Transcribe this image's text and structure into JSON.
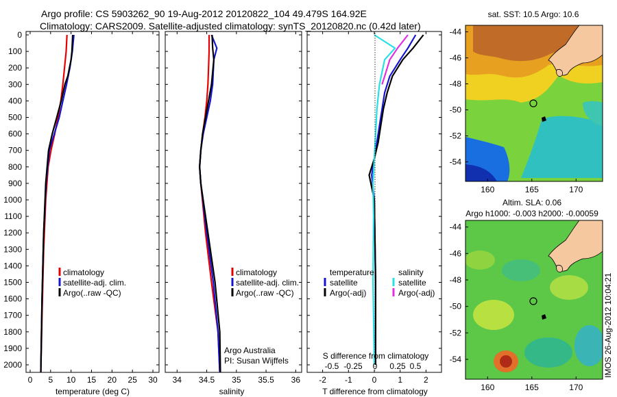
{
  "header": {
    "line1": "Argo profile: CS 5903262_90 19-Aug-2012 20120822_104 49.479S 164.92E",
    "line2": "Climatology: CARS2009. Satellite-adjusted climatology: synTS_20120820.nc (0.42d later)"
  },
  "credits": {
    "org": "Argo Australia",
    "pi": "PI: Susan Wijffels"
  },
  "timestamp": "IMOS 26-Aug-2012 10:04:21",
  "colors": {
    "climatology": "#e60000",
    "satellite": "#1515d0",
    "argo": "#000000",
    "sal_satellite": "#27e0e6",
    "sal_argo": "#e030e0",
    "land": "#f5c8a0",
    "marker": "#000000"
  },
  "chart_data": [
    {
      "type": "line",
      "id": "temperature",
      "xlabel": "temperature (deg C)",
      "ylabel": "",
      "xlim": [
        -1,
        31.5
      ],
      "ylim": [
        2080,
        0
      ],
      "invert_y": true,
      "xticks": [
        0,
        5,
        10,
        15,
        20,
        25,
        30
      ],
      "yticks": [
        0,
        100,
        200,
        300,
        400,
        500,
        600,
        700,
        800,
        900,
        1000,
        1100,
        1200,
        1300,
        1400,
        1500,
        1600,
        1700,
        1800,
        1900,
        2000
      ],
      "legend": {
        "position": "middle-right",
        "entries": [
          "climatology",
          "satellite-adj. clim.",
          "Argo(..raw -QC)"
        ]
      },
      "series": [
        {
          "name": "climatology",
          "color": "red",
          "x": [
            9.0,
            8.8,
            8.4,
            8.0,
            7.5,
            6.8,
            6.0,
            5.1,
            4.4,
            3.8,
            3.3,
            2.9,
            2.6
          ],
          "y": [
            0,
            100,
            200,
            300,
            400,
            500,
            600,
            700,
            800,
            1000,
            1300,
            1700,
            2050
          ]
        },
        {
          "name": "satellite-adj. clim.",
          "color": "blue",
          "x": [
            10.7,
            10.5,
            10.3,
            9.7,
            8.9,
            8.0,
            7.1,
            5.9,
            4.7,
            3.9,
            3.3,
            2.9,
            2.6
          ],
          "y": [
            0,
            50,
            100,
            200,
            300,
            400,
            500,
            600,
            700,
            900,
            1200,
            1600,
            2050
          ]
        },
        {
          "name": "Argo(..raw -QC)",
          "color": "black",
          "x": [
            10.4,
            10.3,
            10.2,
            10.0,
            9.6,
            9.2,
            8.5,
            7.6,
            6.5,
            5.4,
            4.5,
            3.8,
            3.3,
            2.9,
            2.6
          ],
          "y": [
            0,
            50,
            100,
            150,
            200,
            250,
            300,
            400,
            500,
            600,
            700,
            900,
            1200,
            1600,
            2050
          ]
        }
      ]
    },
    {
      "type": "line",
      "id": "salinity",
      "xlabel": "salinity",
      "ylabel": "",
      "xlim": [
        33.8,
        36.1
      ],
      "ylim": [
        2080,
        0
      ],
      "invert_y": true,
      "xticks": [
        34,
        34.5,
        35,
        35.5,
        36
      ],
      "legend": {
        "position": "middle-right",
        "entries": [
          "climatology",
          "satellite-adj. clim.",
          "Argo(..raw -QC)"
        ]
      },
      "series": [
        {
          "name": "climatology",
          "color": "red",
          "x": [
            34.54,
            34.54,
            34.53,
            34.52,
            34.5,
            34.47,
            34.43,
            34.4,
            34.38,
            34.4,
            34.48,
            34.58,
            34.69,
            34.72
          ],
          "y": [
            0,
            100,
            200,
            300,
            400,
            500,
            600,
            700,
            800,
            900,
            1200,
            1500,
            1800,
            2050
          ]
        },
        {
          "name": "satellite-adj. clim.",
          "color": "blue",
          "x": [
            34.58,
            34.67,
            34.62,
            34.6,
            34.56,
            34.5,
            34.44,
            34.4,
            34.38,
            34.4,
            34.5,
            34.61,
            34.69,
            34.72
          ],
          "y": [
            0,
            80,
            150,
            300,
            400,
            500,
            600,
            700,
            800,
            900,
            1200,
            1500,
            1800,
            2050
          ]
        },
        {
          "name": "Argo(..raw -QC)",
          "color": "black",
          "x": [
            34.59,
            34.6,
            34.62,
            34.58,
            34.53,
            34.48,
            34.43,
            34.4,
            34.38,
            34.4,
            34.52,
            34.64,
            34.72,
            34.73
          ],
          "y": [
            0,
            80,
            150,
            300,
            400,
            500,
            600,
            700,
            800,
            900,
            1200,
            1500,
            1800,
            2050
          ]
        }
      ]
    },
    {
      "type": "line",
      "id": "difference",
      "xlabel": "T difference from climatology",
      "xlabel_top": "S difference from climatology",
      "xlim": [
        -2.6,
        2.6
      ],
      "ylim": [
        2080,
        0
      ],
      "invert_y": true,
      "xticks": [
        -2,
        -1,
        0,
        1,
        2
      ],
      "xticks_salinity": [
        -0.5,
        -0.25,
        0,
        0.25,
        0.5
      ],
      "legend": {
        "position": "middle",
        "groups": [
          {
            "title": "temperature",
            "entries": [
              "satellite",
              "Argo(-adj)"
            ]
          },
          {
            "title": "salinity",
            "entries": [
              "satellite",
              "Argo(-adj)"
            ]
          }
        ]
      },
      "series": [
        {
          "name": "temperature satellite",
          "color": "blue",
          "x": [
            1.6,
            1.3,
            1.0,
            0.6,
            0.4,
            0.3,
            0.2,
            0.1,
            0.0,
            -0.1,
            0.0,
            0.05,
            0.05
          ],
          "y": [
            0,
            80,
            150,
            250,
            350,
            450,
            550,
            650,
            750,
            850,
            1000,
            1500,
            2000
          ]
        },
        {
          "name": "temperature Argo(-adj)",
          "color": "black",
          "x": [
            1.9,
            1.5,
            1.1,
            0.7,
            0.5,
            0.35,
            0.25,
            0.15,
            0.0,
            -0.2,
            0.0,
            0.05,
            0.05
          ],
          "y": [
            0,
            80,
            150,
            250,
            350,
            450,
            550,
            650,
            750,
            850,
            1000,
            1500,
            2000
          ]
        },
        {
          "name": "salinity satellite",
          "color": "cyan",
          "x": [
            0.0,
            0.8,
            0.4,
            0.2,
            0.1,
            0.05,
            0.0,
            -0.05,
            -0.03,
            -0.05,
            0.0
          ],
          "y": [
            0,
            80,
            150,
            300,
            450,
            600,
            750,
            900,
            1100,
            1500,
            2000
          ]
        },
        {
          "name": "salinity Argo(-adj)",
          "color": "magenta",
          "x": [
            1.3,
            0.9,
            0.6,
            0.4,
            0.3
          ],
          "y": [
            0,
            80,
            150,
            250,
            300
          ]
        }
      ]
    },
    {
      "type": "heatmap",
      "id": "map-sst",
      "title": "sat. SST: 10.5 Argo: 10.6",
      "xticks": [
        160,
        165,
        170
      ],
      "yticks": [
        -44,
        -46,
        -48,
        -50,
        -52,
        -54
      ],
      "xlim": [
        157.5,
        173
      ],
      "ylim": [
        -55.5,
        -43.5
      ],
      "marker": {
        "lon": 164.92,
        "lat": -49.48
      }
    },
    {
      "type": "heatmap",
      "id": "map-sla",
      "title": "Altim. SLA: 0.06",
      "subtitle": "Argo h1000: -0.003 h2000: -0.00059",
      "xticks": [
        160,
        165,
        170
      ],
      "yticks": [
        -44,
        -46,
        -48,
        -50,
        -52,
        -54
      ],
      "xlim": [
        157.5,
        173
      ],
      "ylim": [
        -55.5,
        -43.5
      ],
      "marker": {
        "lon": 164.92,
        "lat": -49.48
      }
    }
  ]
}
